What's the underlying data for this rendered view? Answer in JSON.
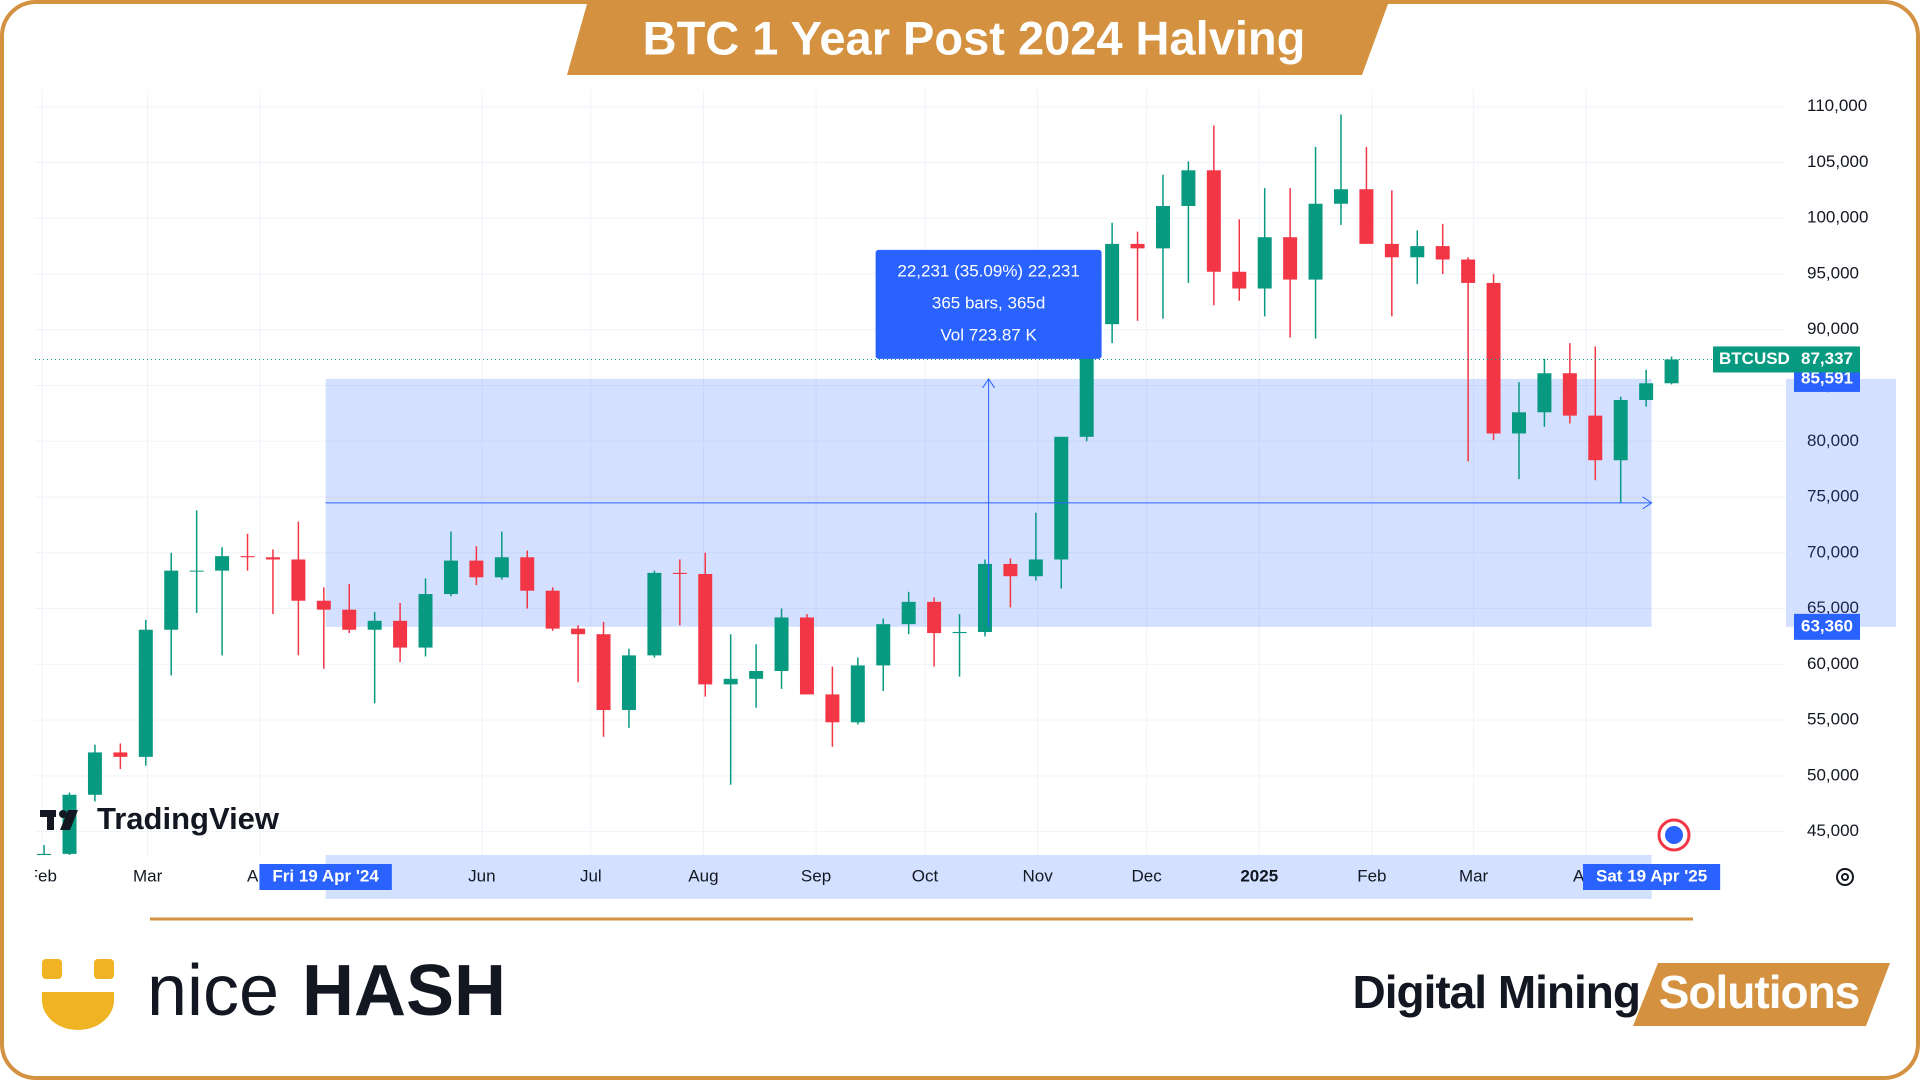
{
  "header": {
    "title": "BTC 1 Year Post 2024 Halving"
  },
  "chart_data": {
    "type": "candlestick",
    "symbol": "BTCUSD",
    "watermark": "TradingView",
    "x": [
      "2024-01-29",
      "2024-02-05",
      "2024-02-12",
      "2024-02-19",
      "2024-02-26",
      "2024-03-04",
      "2024-03-11",
      "2024-03-18",
      "2024-03-25",
      "2024-04-01",
      "2024-04-08",
      "2024-04-15",
      "2024-04-22",
      "2024-04-29",
      "2024-05-06",
      "2024-05-13",
      "2024-05-20",
      "2024-05-27",
      "2024-06-03",
      "2024-06-10",
      "2024-06-17",
      "2024-06-24",
      "2024-07-01",
      "2024-07-08",
      "2024-07-15",
      "2024-07-22",
      "2024-07-29",
      "2024-08-05",
      "2024-08-12",
      "2024-08-19",
      "2024-08-26",
      "2024-09-02",
      "2024-09-09",
      "2024-09-16",
      "2024-09-23",
      "2024-09-30",
      "2024-10-07",
      "2024-10-14",
      "2024-10-21",
      "2024-10-28",
      "2024-11-04",
      "2024-11-11",
      "2024-11-18",
      "2024-11-25",
      "2024-12-02",
      "2024-12-09",
      "2024-12-16",
      "2024-12-23",
      "2024-12-30",
      "2025-01-06",
      "2025-01-13",
      "2025-01-20",
      "2025-01-27",
      "2025-02-03",
      "2025-02-10",
      "2025-02-17",
      "2025-02-24",
      "2025-03-03",
      "2025-03-10",
      "2025-03-17",
      "2025-03-24",
      "2025-03-31",
      "2025-04-07",
      "2025-04-14",
      "2025-04-21"
    ],
    "open": [
      42000,
      43000,
      48300,
      52100,
      51700,
      63100,
      68400,
      68400,
      69700,
      69600,
      69400,
      65700,
      64900,
      63100,
      63900,
      61500,
      66300,
      69300,
      67800,
      69600,
      66600,
      63200,
      62700,
      55900,
      60800,
      68200,
      68100,
      58200,
      58700,
      59400,
      64200,
      57300,
      54800,
      59900,
      63600,
      65600,
      62800,
      62900,
      69000,
      67900,
      69400,
      80400,
      90500,
      97700,
      97300,
      101100,
      104300,
      95200,
      93700,
      98300,
      94500,
      101300,
      102600,
      97700,
      96500,
      97500,
      96300,
      94200,
      80700,
      82600,
      86100,
      82300,
      78300,
      83700,
      85200
    ],
    "high": [
      43800,
      48500,
      52800,
      52900,
      64000,
      70000,
      73800,
      70500,
      71700,
      70300,
      72800,
      66900,
      67200,
      64700,
      65500,
      67700,
      71900,
      70600,
      71900,
      70200,
      66900,
      63500,
      63800,
      61400,
      68400,
      69400,
      70000,
      62700,
      61800,
      65000,
      64500,
      59800,
      60600,
      64100,
      66500,
      66000,
      64500,
      69400,
      69500,
      73600,
      80400,
      93300,
      99600,
      98800,
      103900,
      105100,
      108300,
      99900,
      102700,
      102700,
      106400,
      109300,
      106400,
      102500,
      98900,
      99500,
      96500,
      95000,
      85300,
      87400,
      88800,
      88500,
      84000,
      86400,
      87600
    ],
    "low": [
      41800,
      42500,
      47700,
      50600,
      50900,
      59000,
      64600,
      60800,
      68400,
      64500,
      60800,
      59600,
      62800,
      56500,
      60200,
      60700,
      66100,
      67100,
      67600,
      65000,
      63000,
      58400,
      53500,
      54300,
      60600,
      63500,
      57100,
      49200,
      56100,
      57800,
      57300,
      52600,
      54600,
      57600,
      62700,
      59800,
      58900,
      62500,
      65100,
      67500,
      66800,
      80000,
      88800,
      90800,
      91000,
      94200,
      92200,
      92600,
      91200,
      89300,
      89200,
      99400,
      97800,
      91200,
      94100,
      95000,
      78200,
      80100,
      76600,
      81300,
      81600,
      76500,
      74500,
      83100,
      85100
    ],
    "close": [
      43000,
      48300,
      52100,
      51700,
      63100,
      68400,
      68400,
      69700,
      69600,
      69400,
      65700,
      64900,
      63100,
      63900,
      61500,
      66300,
      69300,
      67800,
      69600,
      66600,
      63200,
      62700,
      55900,
      60800,
      68200,
      68100,
      58200,
      58700,
      59400,
      64200,
      57300,
      54800,
      59900,
      63600,
      65600,
      62800,
      62900,
      69000,
      67900,
      69400,
      80400,
      90500,
      97700,
      97300,
      101100,
      104300,
      95200,
      93700,
      98300,
      94500,
      101300,
      102600,
      97700,
      96500,
      97500,
      96300,
      94200,
      80700,
      82600,
      86100,
      82300,
      78300,
      83700,
      85200,
      87337
    ],
    "up_color": "#089981",
    "down_color": "#f23645",
    "xlim": [
      "2024-01-30",
      "2025-05-26"
    ],
    "xticks": [
      {
        "value": "2024-02-01",
        "label": "Feb"
      },
      {
        "value": "2024-03-01",
        "label": "Mar"
      },
      {
        "value": "2024-04-01",
        "label": "Apr"
      },
      {
        "value": "2024-06-01",
        "label": "Jun"
      },
      {
        "value": "2024-07-01",
        "label": "Jul"
      },
      {
        "value": "2024-08-01",
        "label": "Aug"
      },
      {
        "value": "2024-09-01",
        "label": "Sep"
      },
      {
        "value": "2024-10-01",
        "label": "Oct"
      },
      {
        "value": "2024-11-01",
        "label": "Nov"
      },
      {
        "value": "2024-12-01",
        "label": "Dec"
      },
      {
        "value": "2025-01-01",
        "label": "2025"
      },
      {
        "value": "2025-02-01",
        "label": "Feb"
      },
      {
        "value": "2025-03-01",
        "label": "Mar"
      },
      {
        "value": "2025-04-01",
        "label": "Apr"
      }
    ],
    "ylim": [
      42900,
      111500
    ],
    "yticks": [
      {
        "value": 45000,
        "label": "45,000"
      },
      {
        "value": 50000,
        "label": "50,000"
      },
      {
        "value": 55000,
        "label": "55,000"
      },
      {
        "value": 60000,
        "label": "60,000"
      },
      {
        "value": 65000,
        "label": "65,000"
      },
      {
        "value": 70000,
        "label": "70,000"
      },
      {
        "value": 75000,
        "label": "75,000"
      },
      {
        "value": 80000,
        "label": "80,000"
      },
      {
        "value": 85000,
        "label": "85,000"
      },
      {
        "value": 90000,
        "label": "90,000"
      },
      {
        "value": 95000,
        "label": "95,000"
      },
      {
        "value": 100000,
        "label": "100,000"
      },
      {
        "value": 105000,
        "label": "105,000"
      },
      {
        "value": 110000,
        "label": "110,000"
      }
    ],
    "grid": true,
    "last_price": {
      "value": 87337,
      "label": "87,337"
    },
    "measure": {
      "from": "2024-04-19",
      "to": "2025-04-19",
      "from_label": "Fri 19 Apr '24",
      "to_label": "Sat 19 Apr '25",
      "low": {
        "value": 63360,
        "label": "63,360"
      },
      "high": {
        "value": 85591,
        "label": "85,591"
      },
      "lines": [
        "22,231 (35.09%) 22,231",
        "365 bars, 365d",
        "Vol 723.87 K"
      ]
    }
  },
  "footer": {
    "brand_light": "nice",
    "brand_bold": "HASH",
    "tagline": "Digital Mining",
    "tagline_badge": "Solutions"
  }
}
